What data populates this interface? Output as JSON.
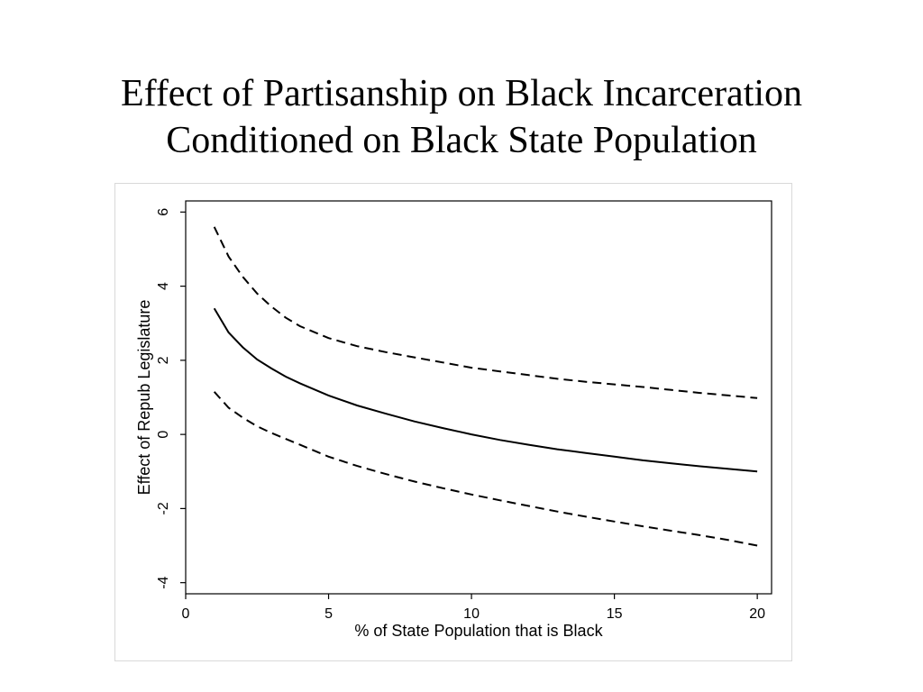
{
  "title_lines": [
    "Effect of Partisanship on Black Incarceration",
    "Conditioned on Black State Population"
  ],
  "chart_data": {
    "type": "line",
    "xlabel": "% of State Population that is Black",
    "ylabel": "Effect of Repub Legislature",
    "xlim": [
      0,
      20.5
    ],
    "ylim": [
      -4.3,
      6.3
    ],
    "xticks": [
      0,
      5,
      10,
      15,
      20
    ],
    "yticks": [
      -4,
      -2,
      0,
      2,
      4,
      6
    ],
    "grid": false,
    "legend": "none",
    "colors": {
      "line": "#000000"
    },
    "x": [
      1,
      1.5,
      2,
      2.5,
      3,
      3.5,
      4,
      5,
      6,
      7,
      8,
      9,
      10,
      11,
      12,
      13,
      14,
      15,
      16,
      17,
      18,
      19,
      20
    ],
    "series": [
      {
        "style": "dashed",
        "values": [
          5.6,
          4.8,
          4.25,
          3.8,
          3.45,
          3.15,
          2.92,
          2.6,
          2.38,
          2.22,
          2.08,
          1.94,
          1.8,
          1.7,
          1.6,
          1.5,
          1.42,
          1.35,
          1.28,
          1.2,
          1.12,
          1.05,
          0.98
        ]
      },
      {
        "style": "solid",
        "values": [
          3.4,
          2.75,
          2.35,
          2.02,
          1.78,
          1.56,
          1.38,
          1.05,
          0.78,
          0.56,
          0.35,
          0.17,
          0.0,
          -0.15,
          -0.28,
          -0.4,
          -0.5,
          -0.6,
          -0.7,
          -0.78,
          -0.86,
          -0.93,
          -1.0
        ]
      },
      {
        "style": "dashed",
        "values": [
          1.15,
          0.72,
          0.45,
          0.22,
          0.04,
          -0.12,
          -0.28,
          -0.6,
          -0.85,
          -1.07,
          -1.27,
          -1.45,
          -1.62,
          -1.78,
          -1.93,
          -2.08,
          -2.22,
          -2.35,
          -2.48,
          -2.6,
          -2.72,
          -2.85,
          -3.0
        ]
      }
    ]
  }
}
